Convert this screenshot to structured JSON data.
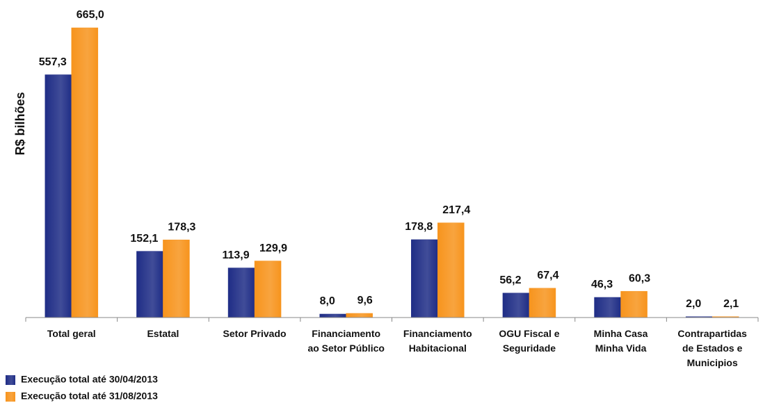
{
  "chart_data": {
    "type": "bar",
    "y_axis_label": "R$ bilhões",
    "categories": [
      [
        "Total geral"
      ],
      [
        "Estatal"
      ],
      [
        "Setor Privado"
      ],
      [
        "Financiamento",
        "ao Setor Público"
      ],
      [
        "Financiamento",
        "Habitacional"
      ],
      [
        "OGU Fiscal e",
        "Seguridade"
      ],
      [
        "Minha Casa",
        "Minha Vida"
      ],
      [
        "Contrapartidas",
        "de Estados e",
        "Municipios"
      ]
    ],
    "series": [
      {
        "name": "Execução total até 30/04/2013",
        "color": "#1f2d86",
        "values": [
          557.3,
          152.1,
          113.9,
          8.0,
          178.8,
          56.2,
          46.3,
          2.0
        ],
        "value_labels": [
          "557,3",
          "152,1",
          "113,9",
          "8,0",
          "178,8",
          "56,2",
          "46,3",
          "2,0"
        ]
      },
      {
        "name": "Execução total até 31/08/2013",
        "color": "#f7941d",
        "values": [
          665.0,
          178.3,
          129.9,
          9.6,
          217.4,
          67.4,
          60.3,
          2.1
        ],
        "value_labels": [
          "665,0",
          "178,3",
          "129,9",
          "9,6",
          "217,4",
          "67,4",
          "60,3",
          "2,1"
        ]
      }
    ],
    "ylim": [
      0,
      700
    ],
    "legend": "bottom-left"
  }
}
